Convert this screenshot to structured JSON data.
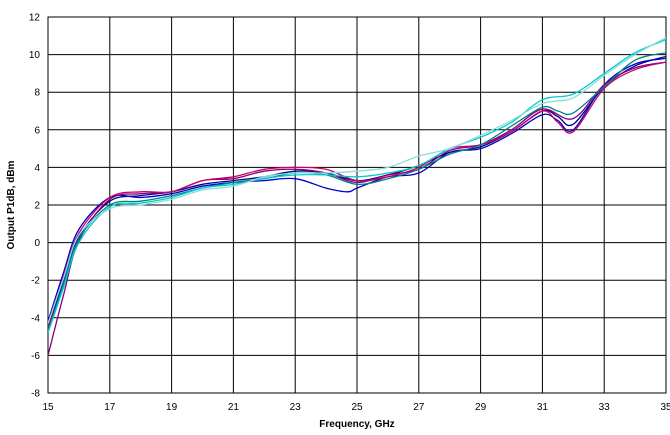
{
  "chart_data": {
    "type": "line",
    "title": "",
    "xlabel": "Frequency, GHz",
    "ylabel": "Output P1dB, dBm",
    "xlim": [
      15,
      35
    ],
    "ylim": [
      -8,
      12
    ],
    "x_ticks": [
      15,
      17,
      19,
      21,
      23,
      25,
      27,
      29,
      31,
      33,
      35
    ],
    "y_ticks": [
      -8,
      -6,
      -4,
      -2,
      0,
      2,
      4,
      6,
      8,
      10,
      12
    ],
    "grid": true,
    "legend": "none",
    "series": [
      {
        "color": "#000080",
        "points": [
          [
            15,
            -4.6
          ],
          [
            15.5,
            -2.0
          ],
          [
            16,
            0.3
          ],
          [
            17,
            2.2
          ],
          [
            18,
            2.5
          ],
          [
            19,
            2.7
          ],
          [
            20,
            3.1
          ],
          [
            21,
            3.3
          ],
          [
            22,
            3.5
          ],
          [
            23,
            3.8
          ],
          [
            24,
            3.7
          ],
          [
            25,
            3.3
          ],
          [
            26,
            3.6
          ],
          [
            27,
            4.1
          ],
          [
            28,
            4.8
          ],
          [
            29,
            5.1
          ],
          [
            30,
            5.9
          ],
          [
            31,
            7.0
          ],
          [
            31.5,
            6.7
          ],
          [
            32,
            6.3
          ],
          [
            33,
            8.3
          ],
          [
            34,
            9.4
          ],
          [
            35,
            9.9
          ]
        ]
      },
      {
        "color": "#0000cc",
        "points": [
          [
            15,
            -4.2
          ],
          [
            15.5,
            -1.6
          ],
          [
            16,
            0.7
          ],
          [
            17,
            2.4
          ],
          [
            18,
            2.4
          ],
          [
            19,
            2.6
          ],
          [
            20,
            3.0
          ],
          [
            21,
            3.2
          ],
          [
            22,
            3.3
          ],
          [
            23,
            3.4
          ],
          [
            24,
            2.9
          ],
          [
            24.7,
            2.7
          ],
          [
            25,
            2.9
          ],
          [
            26,
            3.5
          ],
          [
            27,
            3.7
          ],
          [
            28,
            4.8
          ],
          [
            29,
            5.0
          ],
          [
            30,
            5.8
          ],
          [
            31,
            6.8
          ],
          [
            31.5,
            6.5
          ],
          [
            32,
            6.0
          ],
          [
            33,
            8.4
          ],
          [
            34,
            9.5
          ],
          [
            35,
            9.8
          ]
        ]
      },
      {
        "color": "#800080",
        "points": [
          [
            15,
            -6.0
          ],
          [
            15.5,
            -2.8
          ],
          [
            16,
            0.1
          ],
          [
            17,
            2.3
          ],
          [
            18,
            2.6
          ],
          [
            19,
            2.7
          ],
          [
            20,
            3.3
          ],
          [
            21,
            3.4
          ],
          [
            22,
            3.8
          ],
          [
            23,
            3.9
          ],
          [
            24,
            3.7
          ],
          [
            25,
            3.2
          ],
          [
            26,
            3.6
          ],
          [
            27,
            3.9
          ],
          [
            28,
            4.9
          ],
          [
            29,
            5.2
          ],
          [
            30,
            6.0
          ],
          [
            31,
            7.1
          ],
          [
            32,
            6.6
          ],
          [
            33,
            8.4
          ],
          [
            34,
            9.3
          ],
          [
            35,
            9.6
          ]
        ]
      },
      {
        "color": "#cc0066",
        "points": [
          [
            15,
            -4.5
          ],
          [
            15.5,
            -1.8
          ],
          [
            16,
            0.5
          ],
          [
            17,
            2.4
          ],
          [
            18,
            2.7
          ],
          [
            19,
            2.7
          ],
          [
            20,
            3.3
          ],
          [
            21,
            3.5
          ],
          [
            22,
            3.9
          ],
          [
            23,
            4.0
          ],
          [
            24,
            3.9
          ],
          [
            25,
            3.3
          ],
          [
            26,
            3.5
          ],
          [
            27,
            4.0
          ],
          [
            28,
            5.0
          ],
          [
            29,
            5.2
          ],
          [
            30,
            5.9
          ],
          [
            31,
            7.0
          ],
          [
            31.5,
            6.4
          ],
          [
            32,
            5.9
          ],
          [
            33,
            8.2
          ],
          [
            34,
            9.2
          ],
          [
            35,
            9.6
          ]
        ]
      },
      {
        "color": "#008080",
        "points": [
          [
            15,
            -4.7
          ],
          [
            15.5,
            -2.2
          ],
          [
            16,
            0.2
          ],
          [
            17,
            2.0
          ],
          [
            18,
            2.2
          ],
          [
            19,
            2.5
          ],
          [
            20,
            2.9
          ],
          [
            21,
            3.2
          ],
          [
            22,
            3.4
          ],
          [
            23,
            3.7
          ],
          [
            24,
            3.6
          ],
          [
            25,
            3.1
          ],
          [
            26,
            3.4
          ],
          [
            27,
            3.9
          ],
          [
            28,
            4.7
          ],
          [
            29,
            5.2
          ],
          [
            30,
            6.2
          ],
          [
            31,
            7.2
          ],
          [
            31.5,
            7.0
          ],
          [
            32,
            6.9
          ],
          [
            33,
            8.3
          ],
          [
            34,
            9.7
          ],
          [
            35,
            10.1
          ]
        ]
      },
      {
        "color": "#00cccc",
        "points": [
          [
            15,
            -4.8
          ],
          [
            15.5,
            -2.4
          ],
          [
            16,
            0.0
          ],
          [
            17,
            1.9
          ],
          [
            18,
            2.1
          ],
          [
            19,
            2.4
          ],
          [
            20,
            2.9
          ],
          [
            21,
            3.1
          ],
          [
            22,
            3.4
          ],
          [
            23,
            3.6
          ],
          [
            24,
            3.6
          ],
          [
            25,
            3.5
          ],
          [
            26,
            3.7
          ],
          [
            27,
            4.1
          ],
          [
            28,
            5.0
          ],
          [
            29,
            5.6
          ],
          [
            30,
            6.4
          ],
          [
            31,
            7.6
          ],
          [
            32,
            7.9
          ],
          [
            33,
            9.0
          ],
          [
            34,
            10.1
          ],
          [
            35,
            10.8
          ]
        ]
      },
      {
        "color": "#88dddd",
        "points": [
          [
            15,
            -4.3
          ],
          [
            15.5,
            -1.9
          ],
          [
            16,
            0.4
          ],
          [
            17,
            1.8
          ],
          [
            18,
            2.0
          ],
          [
            19,
            2.3
          ],
          [
            20,
            2.8
          ],
          [
            21,
            3.0
          ],
          [
            22,
            3.5
          ],
          [
            23,
            3.7
          ],
          [
            24,
            3.7
          ],
          [
            25,
            3.8
          ],
          [
            26,
            4.0
          ],
          [
            27,
            4.6
          ],
          [
            28,
            5.0
          ],
          [
            29,
            5.7
          ],
          [
            30,
            6.5
          ],
          [
            31,
            7.4
          ],
          [
            32,
            7.7
          ],
          [
            33,
            8.9
          ],
          [
            34,
            10.0
          ],
          [
            35,
            10.9
          ]
        ]
      }
    ]
  }
}
